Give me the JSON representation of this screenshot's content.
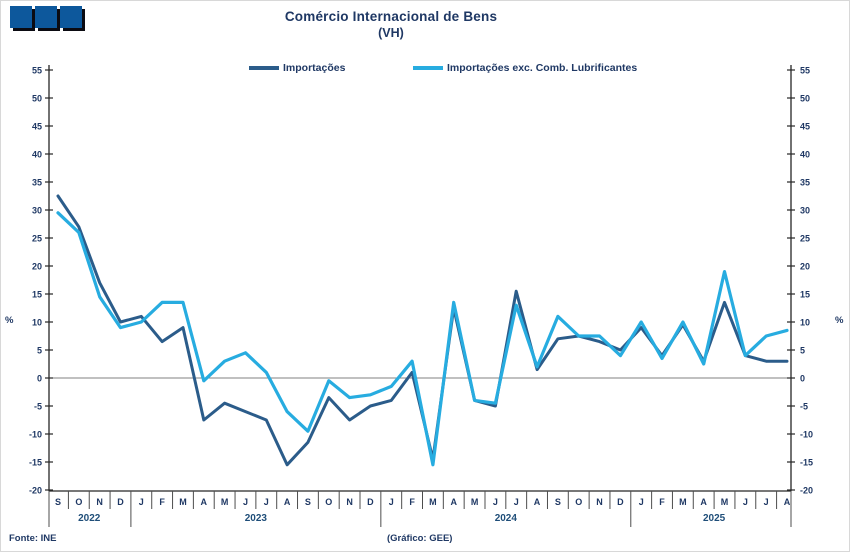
{
  "logo": {
    "squares": 3,
    "color": "#0d589c"
  },
  "title": "Comércio Internacional de Bens",
  "subtitle": "(VH)",
  "legend": [
    {
      "label": "Importações",
      "color": "#2b5c8a"
    },
    {
      "label": "Importações exc. Comb. Lubrificantes",
      "color": "#27ace0"
    }
  ],
  "axis_unit_left": "%",
  "axis_unit_right": "%",
  "footer": {
    "source": "Fonte: INE",
    "credit": "(Gráfico: GEE)"
  },
  "chart_data": {
    "type": "line",
    "title": "Comércio Internacional de Bens (VH)",
    "ylabel": "%",
    "ylim": [
      -20,
      55
    ],
    "ytick_step": 5,
    "y_ticks": [
      "55",
      "50",
      "45",
      "40",
      "35",
      "30",
      "25",
      "20",
      "15",
      "10",
      "5",
      "0",
      "-5",
      "-10",
      "-15",
      "-20"
    ],
    "grid": "zero-line-only",
    "legend_position": "top",
    "x_months": [
      "S",
      "O",
      "N",
      "D",
      "J",
      "F",
      "M",
      "A",
      "M",
      "J",
      "J",
      "A",
      "S",
      "O",
      "N",
      "D",
      "J",
      "F",
      "M",
      "A",
      "M",
      "J",
      "J",
      "A",
      "S",
      "O",
      "N",
      "D",
      "J",
      "F",
      "M",
      "A",
      "M",
      "J",
      "J",
      "A"
    ],
    "year_groups": [
      {
        "label": "2022",
        "count": 4
      },
      {
        "label": "2023",
        "count": 12
      },
      {
        "label": "2024",
        "count": 12
      },
      {
        "label": "2025",
        "count": 8
      }
    ],
    "series": [
      {
        "name": "Importações",
        "color": "#2b5c8a",
        "values": [
          32.5,
          27,
          17,
          10,
          11,
          6.5,
          9,
          -7.5,
          -4.5,
          -6,
          -7.5,
          -15.5,
          -11.5,
          -3.5,
          -7.5,
          -5,
          -4,
          1,
          -14.5,
          12.5,
          -4,
          -5,
          15.5,
          1.5,
          7,
          7.5,
          6.5,
          5,
          9,
          4,
          9.5,
          3,
          13.5,
          4,
          3,
          3
        ]
      },
      {
        "name": "Importações exc. Comb. Lubrificantes",
        "color": "#27ace0",
        "values": [
          29.5,
          26,
          14.5,
          9,
          10,
          13.5,
          13.5,
          -0.5,
          3,
          4.5,
          1,
          -6,
          -9.5,
          -0.5,
          -3.5,
          -3,
          -1.5,
          3,
          -15.5,
          13.5,
          -4,
          -4.5,
          13,
          2,
          11,
          7.5,
          7.5,
          4,
          10,
          3.5,
          10,
          2.5,
          19,
          4,
          7.5,
          8.5
        ]
      }
    ]
  }
}
